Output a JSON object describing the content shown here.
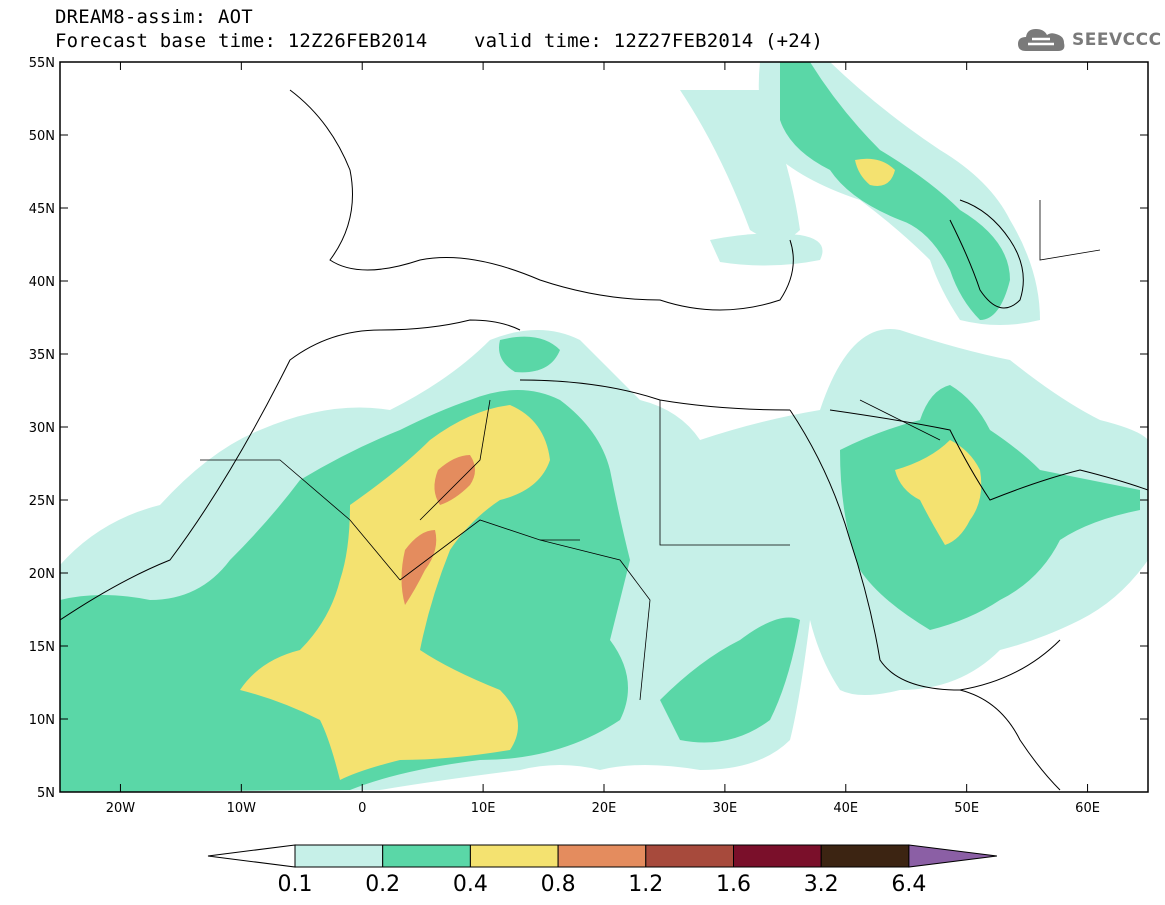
{
  "header": {
    "title": "DREAM8-assim: AOT",
    "base_time": "Forecast base time: 12Z26FEB2014",
    "valid_time": "valid time: 12Z27FEB2014 (+24)"
  },
  "logo": {
    "text": "SEEVCCC",
    "icon": "cloud-icon"
  },
  "map": {
    "lon_range": [
      -25,
      65
    ],
    "lat_range": [
      5,
      55
    ],
    "lat_ticks": [
      "5N",
      "10N",
      "15N",
      "20N",
      "25N",
      "30N",
      "35N",
      "40N",
      "45N",
      "50N",
      "55N"
    ],
    "lon_ticks": [
      "20W",
      "10W",
      "0",
      "10E",
      "20E",
      "30E",
      "40E",
      "50E",
      "60E"
    ]
  },
  "colorbar": {
    "labels": [
      "0.1",
      "0.2",
      "0.4",
      "0.8",
      "1.2",
      "1.6",
      "3.2",
      "6.4"
    ],
    "colors": [
      "#ffffff",
      "#c6f0e8",
      "#5ad7a7",
      "#f4e270",
      "#e48c5e",
      "#a74a3c",
      "#7a0f2a",
      "#3c2412",
      "#8b5fa5"
    ]
  }
}
